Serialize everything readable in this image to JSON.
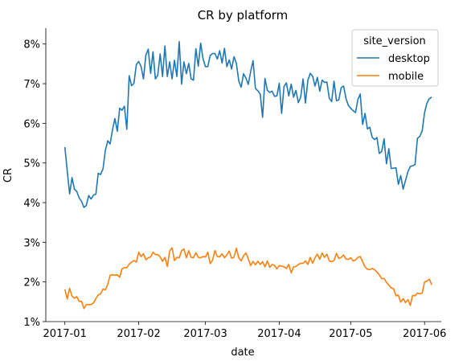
{
  "chart_data": {
    "type": "line",
    "title": "CR by platform",
    "xlabel": "date",
    "ylabel": "CR",
    "x_start": "2017-01-01",
    "x_end": "2017-05-31",
    "xlim": [
      "2016-12-24",
      "2017-06-08"
    ],
    "ylim": [
      0.01,
      0.084
    ],
    "x_ticks": [
      {
        "date": "2017-01-01",
        "label": "2017-01"
      },
      {
        "date": "2017-02-01",
        "label": "2017-02"
      },
      {
        "date": "2017-03-01",
        "label": "2017-03"
      },
      {
        "date": "2017-04-01",
        "label": "2017-04"
      },
      {
        "date": "2017-05-01",
        "label": "2017-05"
      },
      {
        "date": "2017-06-01",
        "label": "2017-06"
      }
    ],
    "y_ticks": [
      {
        "value": 0.01,
        "label": "1%"
      },
      {
        "value": 0.02,
        "label": "2%"
      },
      {
        "value": 0.03,
        "label": "3%"
      },
      {
        "value": 0.04,
        "label": "4%"
      },
      {
        "value": 0.05,
        "label": "5%"
      },
      {
        "value": 0.06,
        "label": "6%"
      },
      {
        "value": 0.07,
        "label": "7%"
      },
      {
        "value": 0.08,
        "label": "8%"
      }
    ],
    "grid": false,
    "legend": {
      "title": "site_version",
      "placement": "upper right"
    },
    "series": [
      {
        "name": "desktop",
        "color": "#1f77b4",
        "values": [
          0.054,
          0.048,
          0.0422,
          0.0463,
          0.0434,
          0.0428,
          0.0412,
          0.0403,
          0.0388,
          0.0393,
          0.0418,
          0.0409,
          0.0419,
          0.0421,
          0.0474,
          0.0471,
          0.0485,
          0.0532,
          0.0556,
          0.0548,
          0.0584,
          0.0612,
          0.058,
          0.0638,
          0.0633,
          0.0643,
          0.0585,
          0.072,
          0.0695,
          0.0701,
          0.0748,
          0.0756,
          0.0743,
          0.0712,
          0.0772,
          0.0787,
          0.0726,
          0.078,
          0.0712,
          0.0721,
          0.0775,
          0.0718,
          0.0795,
          0.0718,
          0.0755,
          0.0712,
          0.0759,
          0.0718,
          0.0806,
          0.0699,
          0.0755,
          0.0725,
          0.0751,
          0.0712,
          0.0709,
          0.0788,
          0.0744,
          0.0802,
          0.0763,
          0.0743,
          0.0743,
          0.0771,
          0.0776,
          0.0776,
          0.0762,
          0.0783,
          0.0752,
          0.0789,
          0.0743,
          0.076,
          0.0737,
          0.0768,
          0.0751,
          0.0707,
          0.0691,
          0.0725,
          0.0714,
          0.0698,
          0.0731,
          0.0758,
          0.0688,
          0.0682,
          0.0674,
          0.0615,
          0.0713,
          0.0683,
          0.0678,
          0.0681,
          0.0668,
          0.0669,
          0.0701,
          0.0625,
          0.0693,
          0.0702,
          0.0669,
          0.0699,
          0.0666,
          0.0683,
          0.0652,
          0.0666,
          0.0712,
          0.0651,
          0.0708,
          0.0726,
          0.0719,
          0.0694,
          0.0716,
          0.0681,
          0.0709,
          0.0703,
          0.0704,
          0.0663,
          0.0655,
          0.0706,
          0.0657,
          0.0659,
          0.069,
          0.0694,
          0.0663,
          0.0645,
          0.0638,
          0.0632,
          0.0627,
          0.066,
          0.0674,
          0.0597,
          0.0625,
          0.0586,
          0.059,
          0.0565,
          0.0559,
          0.0564,
          0.0524,
          0.0529,
          0.0561,
          0.0498,
          0.0536,
          0.0486,
          0.0487,
          0.0488,
          0.0446,
          0.0468,
          0.0434,
          0.0456,
          0.0478,
          0.0491,
          0.0493,
          0.0496,
          0.0562,
          0.0567,
          0.0581,
          0.0627,
          0.0651,
          0.0662,
          0.0666
        ]
      },
      {
        "name": "mobile",
        "color": "#ff7f0e",
        "values": [
          0.0181,
          0.0157,
          0.0184,
          0.0164,
          0.0159,
          0.0163,
          0.0151,
          0.0151,
          0.0133,
          0.0143,
          0.0143,
          0.0143,
          0.0147,
          0.0158,
          0.0167,
          0.017,
          0.0182,
          0.018,
          0.0194,
          0.0217,
          0.0218,
          0.0217,
          0.0218,
          0.0212,
          0.0233,
          0.0236,
          0.0236,
          0.0245,
          0.025,
          0.0254,
          0.025,
          0.0275,
          0.0264,
          0.0271,
          0.0256,
          0.0261,
          0.0263,
          0.0275,
          0.0269,
          0.0269,
          0.0263,
          0.0252,
          0.0262,
          0.0239,
          0.0278,
          0.0286,
          0.0254,
          0.0262,
          0.0261,
          0.0279,
          0.0283,
          0.0261,
          0.0279,
          0.0262,
          0.0261,
          0.0274,
          0.0262,
          0.0261,
          0.0264,
          0.0263,
          0.0275,
          0.0246,
          0.0255,
          0.0279,
          0.0264,
          0.0263,
          0.0271,
          0.0261,
          0.0268,
          0.0278,
          0.026,
          0.0262,
          0.0285,
          0.0261,
          0.0253,
          0.0266,
          0.0273,
          0.0258,
          0.0241,
          0.0252,
          0.0243,
          0.0252,
          0.0244,
          0.0251,
          0.0238,
          0.0253,
          0.0237,
          0.0244,
          0.0242,
          0.0233,
          0.0241,
          0.024,
          0.0238,
          0.0234,
          0.0244,
          0.0223,
          0.0238,
          0.0239,
          0.0244,
          0.0247,
          0.0247,
          0.0253,
          0.0244,
          0.0262,
          0.0247,
          0.0261,
          0.027,
          0.0257,
          0.0273,
          0.0262,
          0.027,
          0.0253,
          0.0251,
          0.0254,
          0.0272,
          0.0259,
          0.0262,
          0.0268,
          0.0258,
          0.0257,
          0.0261,
          0.0253,
          0.0255,
          0.0262,
          0.0264,
          0.0251,
          0.0238,
          0.0232,
          0.0231,
          0.0234,
          0.0231,
          0.0225,
          0.0218,
          0.0208,
          0.0209,
          0.0199,
          0.0192,
          0.0185,
          0.0183,
          0.0165,
          0.0167,
          0.0149,
          0.0158,
          0.0148,
          0.0155,
          0.0141,
          0.0166,
          0.0165,
          0.0172,
          0.017,
          0.0172,
          0.02,
          0.0202,
          0.0207,
          0.0193
        ]
      }
    ]
  }
}
